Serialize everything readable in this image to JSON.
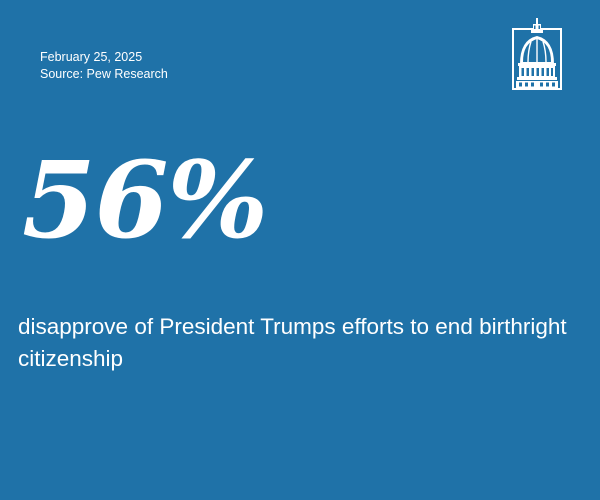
{
  "meta": {
    "date": "February 25, 2025",
    "source": "Source: Pew Research"
  },
  "stat": {
    "value": "56%",
    "caption": "disapprove of President Trumps efforts to end birthright citizenship"
  },
  "logo": {
    "icon": "capitol-dome-icon"
  },
  "colors": {
    "background": "#1f72a8",
    "text": "#ffffff"
  }
}
